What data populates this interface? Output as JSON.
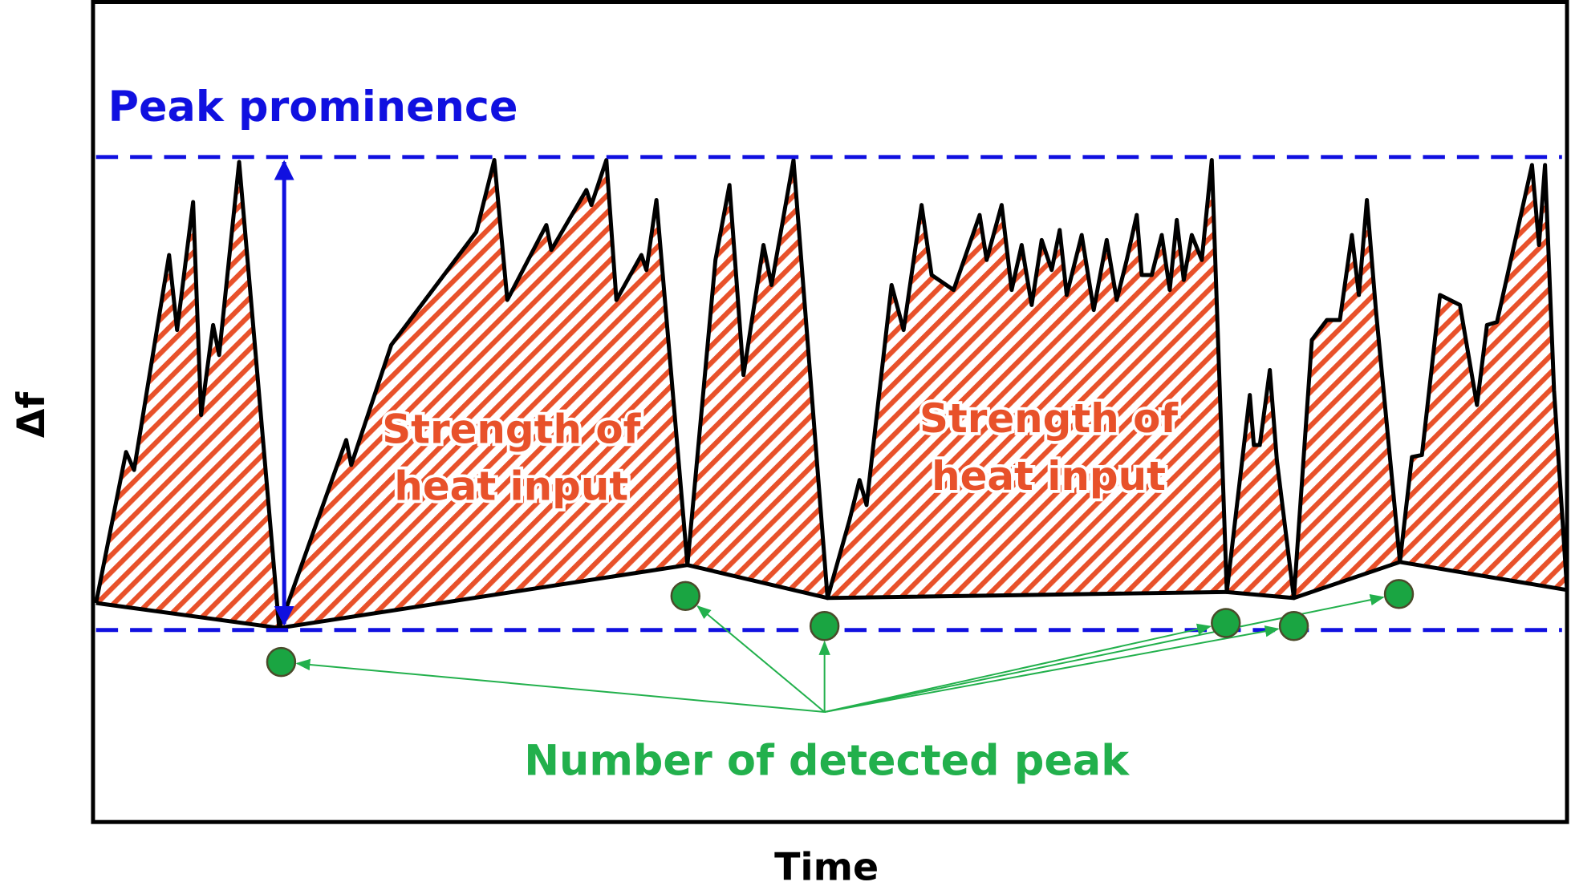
{
  "annotations": {
    "peak_prominence": "Peak prominence",
    "heat_input_labels": [
      [
        "Strength of",
        "heat input"
      ],
      [
        "Strength of",
        "heat input"
      ]
    ],
    "detected_peaks": "Number of detected peak"
  },
  "axes": {
    "y_label": "Δf",
    "x_label": "Time"
  }
}
